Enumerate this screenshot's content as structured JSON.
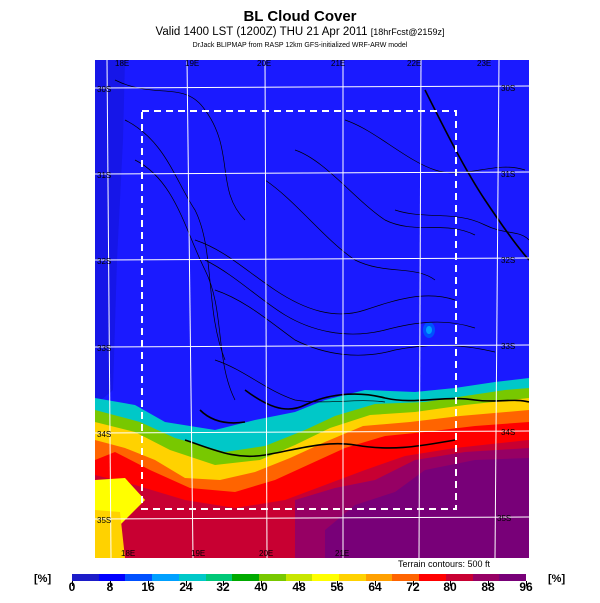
{
  "header": {
    "title": "BL Cloud Cover",
    "subtitle_main": "Valid 1400 LST (1200Z) THU 21 Apr 2011",
    "subtitle_tag": "[18hrFcst@2159z]",
    "credit": "DrJack BLIPMAP from RASP 12km GFS-initialized WRF-ARW model"
  },
  "map": {
    "longitude_labels_top": [
      "18E",
      "19E",
      "20E",
      "21E",
      "22E",
      "23E"
    ],
    "longitude_labels_bottom": [
      "18E",
      "19E",
      "20E",
      "21E"
    ],
    "latitude_labels_left": [
      "30S",
      "31S",
      "32S",
      "33S",
      "34S",
      "35S"
    ],
    "latitude_labels_right": [
      "30S",
      "31S",
      "32S",
      "33S",
      "34S",
      "35S"
    ],
    "terrain_note": "Terrain contours: 500 ft",
    "colors": {
      "ocean_clear": "#1414e0",
      "land_clear": "#1a1aff",
      "grid": "#ffffff",
      "contour": "#000000",
      "box": "#ffffff"
    }
  },
  "colorbar": {
    "unit_left": "[%]",
    "unit_right": "[%]",
    "ticks": [
      "0",
      "8",
      "16",
      "24",
      "32",
      "40",
      "48",
      "56",
      "64",
      "72",
      "80",
      "88",
      "96"
    ],
    "colors": [
      "#1c1cc8",
      "#0000ff",
      "#0050ff",
      "#00a0ff",
      "#00c8c8",
      "#00c878",
      "#00aa00",
      "#78c800",
      "#c8e600",
      "#ffff00",
      "#ffd200",
      "#ffa000",
      "#ff6400",
      "#ff0000",
      "#c80032",
      "#960064",
      "#780078"
    ]
  }
}
